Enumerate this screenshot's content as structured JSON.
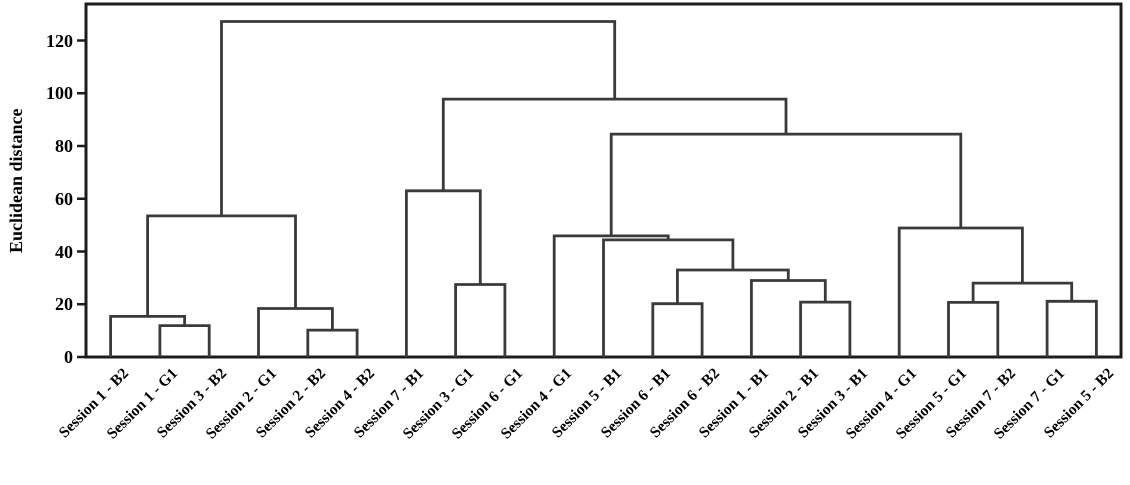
{
  "colors": {
    "line": "#3a3a3a",
    "frame": "#1c1c1c",
    "text": "#000000",
    "background": "#ffffff"
  },
  "y_axis": {
    "label": "Euclidean distance",
    "ticks": [
      0,
      20,
      40,
      60,
      80,
      100,
      120
    ]
  },
  "chart_data": {
    "type": "dendrogram",
    "title": "",
    "xlabel": "",
    "ylabel": "Euclidean distance",
    "ylim": [
      0,
      134
    ],
    "yticks": [
      0,
      20,
      40,
      60,
      80,
      100,
      120
    ],
    "grid": false,
    "leaves": [
      "Session 1 - B2",
      "Session 1 - G1",
      "Session 3 - B2",
      "Session 2 - G1",
      "Session 2 - B2",
      "Session 4 - B2",
      "Session 7 - B1",
      "Session 3 - G1",
      "Session 6 - G1",
      "Session 4 - G1",
      "Session 5 - B1",
      "Session 6 - B1",
      "Session 6 - B2",
      "Session 1 - B1",
      "Session 2 - B1",
      "Session 3 - B1",
      "Session 4 - G1",
      "Session 5 - G1",
      "Session 7 - B2",
      "Session 7 - G1",
      "Session 5 - B2"
    ],
    "tree": {
      "h": 127.2,
      "children": [
        {
          "h": 53.5,
          "children": [
            {
              "h": 15.4,
              "children": [
                {
                  "leaf": 0
                },
                {
                  "h": 11.9,
                  "children": [
                    {
                      "leaf": 1
                    },
                    {
                      "leaf": 2
                    }
                  ]
                }
              ]
            },
            {
              "h": 18.4,
              "children": [
                {
                  "leaf": 3
                },
                {
                  "h": 10.2,
                  "children": [
                    {
                      "leaf": 4
                    },
                    {
                      "leaf": 5
                    }
                  ]
                }
              ]
            }
          ]
        },
        {
          "h": 97.8,
          "children": [
            {
              "h": 63.0,
              "children": [
                {
                  "leaf": 6
                },
                {
                  "h": 27.5,
                  "children": [
                    {
                      "leaf": 7
                    },
                    {
                      "leaf": 8
                    }
                  ]
                }
              ]
            },
            {
              "h": 84.5,
              "children": [
                {
                  "h": 45.9,
                  "children": [
                    {
                      "leaf": 9
                    },
                    {
                      "h": 44.4,
                      "children": [
                        {
                          "leaf": 10
                        },
                        {
                          "h": 33.0,
                          "children": [
                            {
                              "h": 20.2,
                              "children": [
                                {
                                  "leaf": 11
                                },
                                {
                                  "leaf": 12
                                }
                              ]
                            },
                            {
                              "h": 29.0,
                              "children": [
                                {
                                  "leaf": 13
                                },
                                {
                                  "h": 20.8,
                                  "children": [
                                    {
                                      "leaf": 14
                                    },
                                    {
                                      "leaf": 15
                                    }
                                  ]
                                }
                              ]
                            }
                          ]
                        }
                      ]
                    }
                  ]
                },
                {
                  "h": 48.9,
                  "children": [
                    {
                      "leaf": 16
                    },
                    {
                      "h": 28.0,
                      "children": [
                        {
                          "h": 20.7,
                          "children": [
                            {
                              "leaf": 17
                            },
                            {
                              "leaf": 18
                            }
                          ]
                        },
                        {
                          "h": 21.1,
                          "children": [
                            {
                              "leaf": 19
                            },
                            {
                              "leaf": 20
                            }
                          ]
                        }
                      ]
                    }
                  ]
                }
              ]
            }
          ]
        }
      ]
    }
  }
}
